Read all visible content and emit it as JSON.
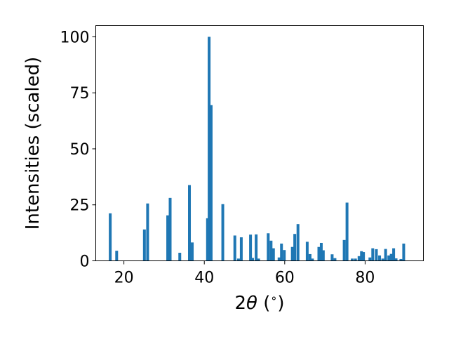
{
  "chart_data": {
    "type": "bar",
    "title": "",
    "xlabel_parts": [
      "2",
      "θ",
      " (",
      "∘",
      ")"
    ],
    "ylabel": "Intensities (scaled)",
    "xlim": [
      13,
      94.5
    ],
    "ylim": [
      0,
      105
    ],
    "xticks": [
      20,
      40,
      60,
      80
    ],
    "yticks": [
      0,
      25,
      50,
      75,
      100
    ],
    "grid": false,
    "bar_width_deg": 0.7,
    "bar_color": "#1f77b4",
    "x": [
      16.6,
      18.2,
      25.1,
      25.9,
      30.9,
      31.5,
      33.9,
      36.3,
      37.0,
      40.8,
      41.2,
      41.7,
      44.6,
      47.6,
      48.5,
      49.2,
      51.5,
      52.0,
      52.9,
      53.5,
      55.9,
      56.6,
      57.2,
      58.6,
      59.2,
      59.9,
      61.9,
      62.5,
      63.3,
      65.6,
      66.3,
      66.9,
      68.5,
      69.1,
      69.6,
      71.8,
      72.5,
      74.8,
      75.5,
      76.8,
      77.6,
      78.5,
      79.1,
      79.6,
      81.2,
      81.9,
      82.8,
      83.6,
      84.4,
      85.1,
      85.9,
      86.5,
      87.1,
      87.7,
      88.9,
      89.6
    ],
    "values": [
      21.2,
      4.5,
      14.0,
      25.6,
      20.3,
      28.1,
      3.6,
      33.8,
      8.2,
      19.0,
      100.0,
      69.5,
      25.3,
      11.3,
      1.0,
      10.5,
      11.7,
      1.3,
      11.8,
      1.0,
      12.3,
      9.0,
      5.6,
      1.5,
      7.7,
      4.8,
      6.2,
      12.0,
      16.4,
      8.5,
      3.0,
      1.0,
      6.2,
      8.0,
      4.7,
      2.9,
      1.2,
      9.3,
      26.0,
      1.0,
      1.0,
      2.1,
      4.3,
      3.9,
      1.5,
      5.6,
      5.2,
      2.4,
      1.0,
      5.3,
      2.4,
      3.1,
      5.6,
      1.1,
      0.8,
      7.7
    ]
  }
}
